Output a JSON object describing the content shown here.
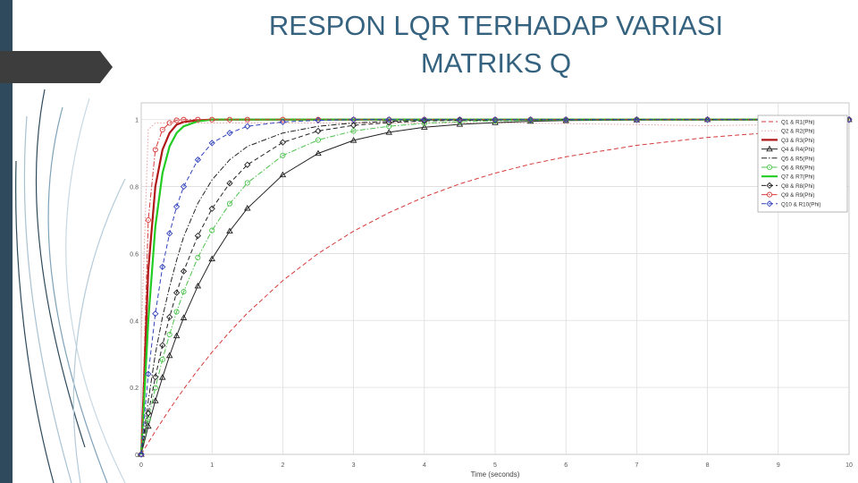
{
  "slide": {
    "title_line1": "RESPON LQR TERHADAP VARIASI",
    "title_line2": "MATRIKS Q"
  },
  "chart_data": {
    "type": "line",
    "title": "",
    "xlabel": "Time (seconds)",
    "ylabel": "",
    "xlim": [
      0,
      10
    ],
    "ylim": [
      0,
      1.05
    ],
    "xticks": [
      "0",
      "1",
      "2",
      "3",
      "4",
      "5",
      "6",
      "7",
      "8",
      "9",
      "10"
    ],
    "yticks": [
      "0",
      "0.2",
      "0.4",
      "0.6",
      "0.8",
      "1"
    ],
    "grid": true,
    "legend_position": "top-right",
    "x": [
      0,
      0.1,
      0.2,
      0.3,
      0.4,
      0.5,
      0.6,
      0.8,
      1.0,
      1.25,
      1.5,
      2.0,
      2.5,
      3.0,
      3.5,
      4.0,
      4.5,
      5.0,
      5.5,
      6.0,
      7.0,
      8.0,
      9.0,
      10.0
    ],
    "series": [
      {
        "name": "Q1 & R1(Phi)",
        "color": "#d63a3a",
        "style": "dash",
        "marker": "none",
        "values": [
          0,
          0.035,
          0.069,
          0.102,
          0.134,
          0.165,
          0.195,
          0.252,
          0.305,
          0.366,
          0.422,
          0.519,
          0.6,
          0.667,
          0.722,
          0.769,
          0.808,
          0.84,
          0.867,
          0.889,
          0.923,
          0.947,
          0.963,
          0.975
        ]
      },
      {
        "name": "Q2 & R2(Phi)",
        "color": "#e8a0a0",
        "style": "dot",
        "marker": "none",
        "values": [
          0.35,
          0.97,
          0.99,
          0.99,
          0.99,
          0.99,
          0.99,
          0.99,
          0.99,
          0.99,
          0.99,
          0.99,
          0.99,
          0.99,
          0.99,
          0.99,
          0.99,
          0.99,
          0.99,
          0.988,
          0.985,
          0.982,
          0.985,
          0.99
        ]
      },
      {
        "name": "Q3 & R3(Phi)",
        "color": "#b01818",
        "style": "solid",
        "marker": "none",
        "values": [
          0,
          0.55,
          0.8,
          0.91,
          0.96,
          0.985,
          0.993,
          0.998,
          1,
          1,
          1,
          1,
          1,
          1,
          1,
          1,
          1,
          1,
          1,
          1,
          1,
          1,
          1,
          1
        ]
      },
      {
        "name": "Q4 & R4(Phi)",
        "color": "#222222",
        "style": "solid",
        "marker": "triangle",
        "values": [
          0,
          0.084,
          0.16,
          0.23,
          0.295,
          0.354,
          0.408,
          0.503,
          0.584,
          0.667,
          0.735,
          0.835,
          0.899,
          0.938,
          0.962,
          0.977,
          0.986,
          0.991,
          0.995,
          0.997,
          0.999,
          1,
          1,
          1
        ]
      },
      {
        "name": "Q5 & R5(Phi)",
        "color": "#222222",
        "style": "dashdot",
        "marker": "none",
        "values": [
          0,
          0.16,
          0.3,
          0.41,
          0.5,
          0.58,
          0.65,
          0.75,
          0.82,
          0.88,
          0.92,
          0.96,
          0.98,
          0.99,
          0.995,
          0.998,
          1,
          1,
          1,
          1,
          1,
          1,
          1,
          1
        ]
      },
      {
        "name": "Q6 & R6(Phi)",
        "color": "#4cc24c",
        "style": "dashdot",
        "marker": "circle",
        "values": [
          0,
          0.105,
          0.199,
          0.283,
          0.358,
          0.426,
          0.486,
          0.588,
          0.669,
          0.749,
          0.811,
          0.893,
          0.939,
          0.966,
          0.98,
          0.989,
          0.994,
          0.996,
          0.998,
          0.999,
          1,
          1,
          1,
          1
        ]
      },
      {
        "name": "Q7 & R7(Phi)",
        "color": "#22cc22",
        "style": "solid",
        "marker": "none",
        "values": [
          0,
          0.4,
          0.68,
          0.84,
          0.92,
          0.96,
          0.98,
          0.995,
          1,
          1,
          1,
          1,
          1,
          1,
          1,
          1,
          1,
          1,
          1,
          1,
          1,
          1,
          1,
          1
        ]
      },
      {
        "name": "Q8 & R8(Phi)",
        "color": "#222222",
        "style": "dash",
        "marker": "diamond",
        "values": [
          0,
          0.123,
          0.231,
          0.326,
          0.41,
          0.483,
          0.547,
          0.653,
          0.734,
          0.81,
          0.865,
          0.932,
          0.966,
          0.983,
          0.991,
          0.996,
          0.998,
          0.999,
          1,
          1,
          1,
          1,
          1,
          1
        ]
      },
      {
        "name": "Q9 & R9(Phi)",
        "color": "#d63a3a",
        "style": "dashdot",
        "marker": "circle",
        "values": [
          0,
          0.7,
          0.91,
          0.97,
          0.99,
          0.998,
          1,
          1,
          1,
          1,
          1,
          1,
          1,
          1,
          1,
          1,
          1,
          1,
          1,
          1,
          1,
          1,
          1,
          1
        ]
      },
      {
        "name": "Q10 & R10(Phi)",
        "color": "#3344bb",
        "style": "dash",
        "marker": "diamond",
        "values": [
          0,
          0.24,
          0.42,
          0.56,
          0.66,
          0.74,
          0.8,
          0.88,
          0.93,
          0.96,
          0.98,
          0.993,
          0.998,
          1,
          1,
          1,
          1,
          1,
          1,
          1,
          1,
          1,
          1,
          1
        ]
      }
    ]
  }
}
